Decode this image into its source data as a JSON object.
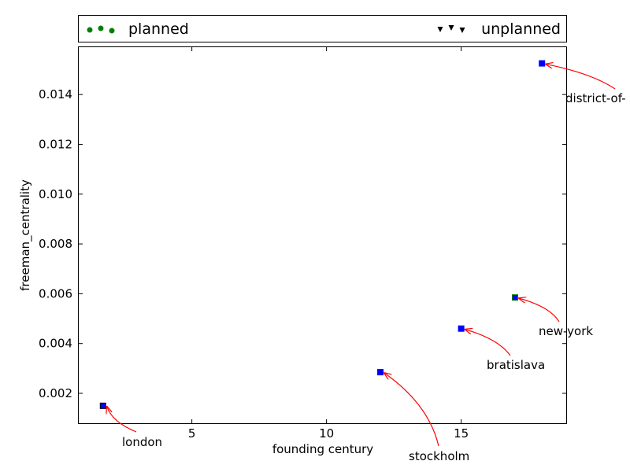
{
  "chart_data": {
    "type": "scatter",
    "xlabel": "founding century",
    "ylabel": "freeman_centrality",
    "xlim": [
      0.8,
      18.9
    ],
    "ylim": [
      0.0008,
      0.0159
    ],
    "xticks": [
      5,
      10,
      15
    ],
    "xtick_labels": [
      "5",
      "10",
      "15"
    ],
    "yticks": [
      0.002,
      0.004,
      0.006,
      0.008,
      0.01,
      0.012,
      0.014
    ],
    "ytick_labels": [
      "0.002",
      "0.004",
      "0.006",
      "0.008",
      "0.010",
      "0.012",
      "0.014"
    ],
    "legend": {
      "placement": "top",
      "entries": [
        {
          "label": "planned",
          "marker": "circle",
          "color": "#008000"
        },
        {
          "label": "unplanned",
          "marker": "triangle-down",
          "color": "#000000"
        }
      ]
    },
    "points": [
      {
        "x": 1.7,
        "y": 0.0015,
        "color": "#0000ff",
        "edge": "#000000",
        "label": "london"
      },
      {
        "x": 12.0,
        "y": 0.00285,
        "color": "#0000ff",
        "edge": "#0000ff",
        "label": "stockholm"
      },
      {
        "x": 15.0,
        "y": 0.0046,
        "color": "#0000ff",
        "edge": "#0000ff",
        "label": "bratislava"
      },
      {
        "x": 17.0,
        "y": 0.00585,
        "color": "#0000ff",
        "edge": "#008000",
        "label": "new-york"
      },
      {
        "x": 18.0,
        "y": 0.01525,
        "color": "#0000ff",
        "edge": "#0000ff",
        "label": "district-of-"
      }
    ],
    "arrow_color": "#ff0000"
  }
}
